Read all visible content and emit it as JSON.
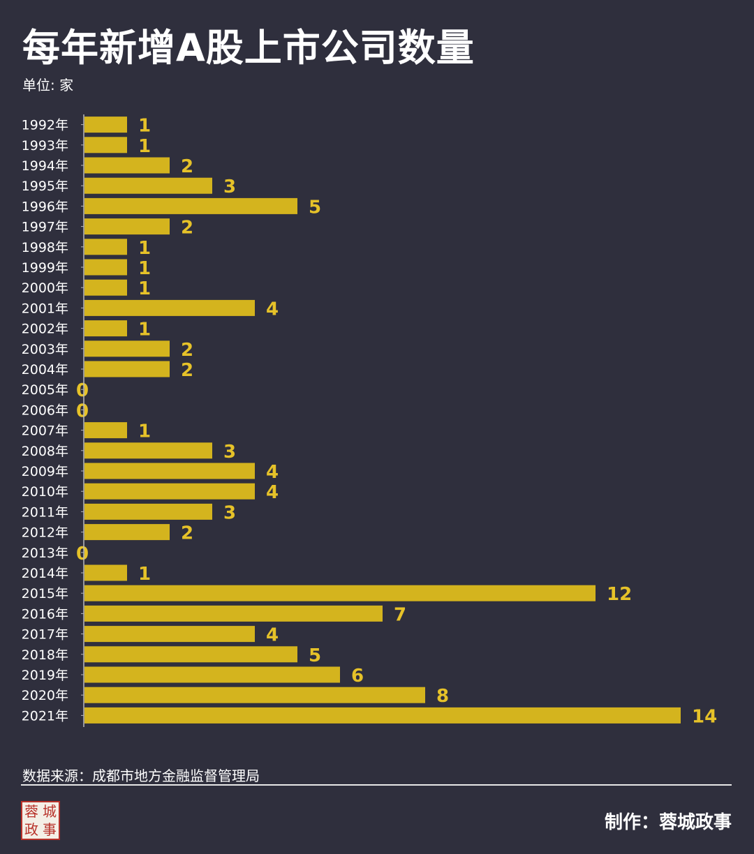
{
  "header": {
    "title": "每年新增A股上市公司数量",
    "unit": "单位: 家"
  },
  "footer": {
    "source": "数据来源：成都市地方金融监督管理局",
    "credit": "制作：蓉城政事",
    "seal_text": [
      "蓉",
      "城",
      "政",
      "事"
    ]
  },
  "colors": {
    "background": "#2f2f3d",
    "bar": "#d4b41e",
    "value_label": "#e6c229",
    "text": "#ffffff",
    "seal": "#b8322a"
  },
  "chart_data": {
    "type": "bar",
    "orientation": "horizontal",
    "title": "每年新增A股上市公司数量",
    "unit": "单位: 家",
    "categories": [
      "1992年",
      "1993年",
      "1994年",
      "1995年",
      "1996年",
      "1997年",
      "1998年",
      "1999年",
      "2000年",
      "2001年",
      "2002年",
      "2003年",
      "2004年",
      "2005年",
      "2006年",
      "2007年",
      "2008年",
      "2009年",
      "2010年",
      "2011年",
      "2012年",
      "2013年",
      "2014年",
      "2015年",
      "2016年",
      "2017年",
      "2018年",
      "2019年",
      "2020年",
      "2021年"
    ],
    "values": [
      1,
      1,
      2,
      3,
      5,
      2,
      1,
      1,
      1,
      4,
      1,
      2,
      2,
      0,
      0,
      1,
      3,
      4,
      4,
      3,
      2,
      0,
      1,
      12,
      7,
      4,
      5,
      6,
      8,
      14
    ],
    "xlim": [
      0,
      14
    ],
    "data_labels": true,
    "grid": false,
    "legend": "none"
  }
}
